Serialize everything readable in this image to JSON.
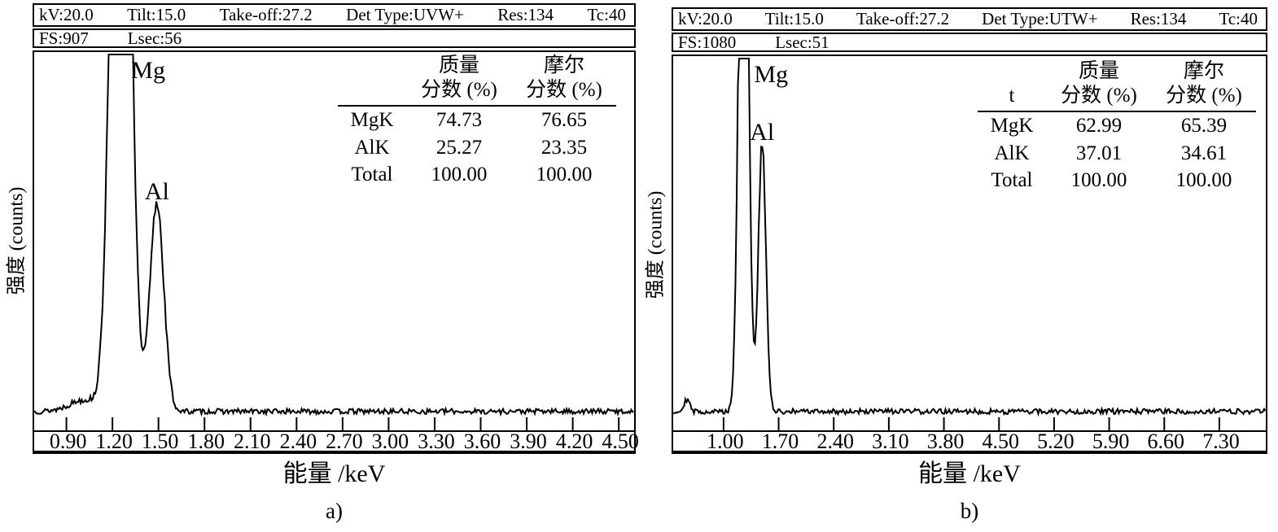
{
  "figure": {
    "description": "Two EDS X-ray spectra of Mg-Al samples with quantification tables"
  },
  "panels": [
    {
      "id": "a",
      "header_row1": [
        "kV:20.0",
        "Tilt:15.0",
        "Take-off:27.2",
        "Det Type:UVW+",
        "Res:134",
        "Tc:40"
      ],
      "header_row2": [
        "FS:907",
        "Lsec:56"
      ],
      "table": {
        "col_headers_line1": [
          "",
          "质量",
          "摩尔"
        ],
        "col_headers_line2": [
          "",
          "分数 (%)",
          "分数 (%)"
        ],
        "rows": [
          [
            "MgK",
            "74.73",
            "76.65"
          ],
          [
            "AlK",
            "25.27",
            "23.35"
          ],
          [
            "Total",
            "100.00",
            "100.00"
          ]
        ]
      },
      "ylabel": "强度 (counts)",
      "xlabel": "能量 /keV",
      "caption": "a)"
    },
    {
      "id": "b",
      "header_row1": [
        "kV:20.0",
        "Tilt:15.0",
        "Take-off:27.2",
        "Det Type:UTW+",
        "Res:134",
        "Tc:40"
      ],
      "header_row2": [
        "FS:1080",
        "Lsec:51"
      ],
      "table": {
        "col_headers_line1": [
          "",
          "质量",
          "摩尔"
        ],
        "col_headers_line2": [
          "t",
          "分数 (%)",
          "分数 (%)"
        ],
        "rows": [
          [
            "MgK",
            "62.99",
            "65.39"
          ],
          [
            "AlK",
            "37.01",
            "34.61"
          ],
          [
            "Total",
            "100.00",
            "100.00"
          ]
        ]
      },
      "ylabel": "强度 (counts)",
      "xlabel": "能量 /keV",
      "caption": "b)"
    }
  ],
  "chart_data": [
    {
      "type": "line",
      "title": "EDS spectrum a)",
      "xlabel": "能量 /keV",
      "ylabel": "强度 (counts)",
      "x_range": [
        0.69,
        4.6
      ],
      "x_ticks": [
        0.9,
        1.2,
        1.5,
        1.8,
        2.1,
        2.4,
        2.7,
        3.0,
        3.3,
        3.6,
        3.9,
        4.2,
        4.5
      ],
      "tick_labels": [
        "0.90",
        "1.20",
        "1.50",
        "1.80",
        "2.10",
        "2.40",
        "2.70",
        "3.00",
        "3.30",
        "3.60",
        "3.90",
        "4.20",
        "4.50"
      ],
      "full_scale_counts": 907,
      "baseline_frac": 0.025,
      "peaks": [
        {
          "element": "Mg",
          "center_keV": 1.254,
          "sigma_keV": 0.055,
          "height_frac": 2.85,
          "clipped": true
        },
        {
          "element": "Al",
          "center_keV": 1.49,
          "sigma_keV": 0.045,
          "height_frac": 0.57,
          "clipped": false
        }
      ],
      "extra_bumps": [
        {
          "center": 1.02,
          "sigma": 0.1,
          "height": 0.032
        }
      ],
      "noise_seed": 13,
      "grid": false,
      "legend": false
    },
    {
      "type": "line",
      "title": "EDS spectrum b)",
      "xlabel": "能量 /keV",
      "ylabel": "强度 (counts)",
      "x_range": [
        0.36,
        7.89
      ],
      "x_ticks": [
        1.0,
        1.7,
        2.4,
        3.1,
        3.8,
        4.5,
        5.2,
        5.9,
        6.6,
        7.3
      ],
      "tick_labels": [
        "1.00",
        "1.70",
        "2.40",
        "3.10",
        "3.80",
        "4.50",
        "5.20",
        "5.90",
        "6.60",
        "7.30"
      ],
      "full_scale_counts": 1080,
      "baseline_frac": 0.025,
      "peaks": [
        {
          "element": "Mg",
          "center_keV": 1.254,
          "sigma_keV": 0.055,
          "height_frac": 2.1,
          "clipped": true
        },
        {
          "element": "Al",
          "center_keV": 1.49,
          "sigma_keV": 0.048,
          "height_frac": 0.74,
          "clipped": false
        }
      ],
      "extra_bumps": [
        {
          "center": 0.53,
          "sigma": 0.035,
          "height": 0.035
        }
      ],
      "noise_seed": 29,
      "grid": false,
      "legend": false
    }
  ]
}
